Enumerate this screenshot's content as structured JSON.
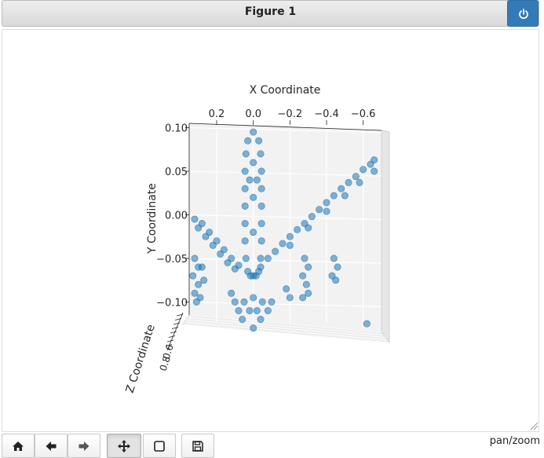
{
  "window": {
    "title": "Figure 1"
  },
  "toolbar": {
    "buttons": [
      {
        "name": "home",
        "icon": "home-icon"
      },
      {
        "name": "back",
        "icon": "arrow-left-icon"
      },
      {
        "name": "forward",
        "icon": "arrow-right-icon"
      },
      {
        "name": "pan",
        "icon": "move-icon",
        "active": true
      },
      {
        "name": "zoom",
        "icon": "square-icon"
      },
      {
        "name": "save",
        "icon": "floppy-icon"
      }
    ],
    "mode_label": "pan/zoom"
  },
  "colors": {
    "accent": "#337ab7",
    "marker": "#1f77b4"
  },
  "chart_data": {
    "type": "scatter",
    "projection": "3d",
    "title": "",
    "xlabel": "X Coordinate",
    "ylabel": "Y Coordinate",
    "zlabel": "Z Coordinate",
    "x_ticks": [
      "0.2",
      "0.0",
      "−0.2",
      "−0.4",
      "−0.6"
    ],
    "x_tick_values": [
      0.2,
      0.0,
      -0.2,
      -0.4,
      -0.6
    ],
    "y_ticks": [
      "0.10",
      "0.05",
      "0.00",
      "−0.05",
      "−0.10"
    ],
    "y_tick_values": [
      0.1,
      0.05,
      0.0,
      -0.05,
      -0.1
    ],
    "z_ticks": [
      "0.6",
      "0.8"
    ],
    "xlim": [
      0.35,
      -0.7
    ],
    "ylim": [
      -0.115,
      0.105
    ],
    "grid": true,
    "description": "airplane point cloud viewed from the front",
    "series": [
      {
        "part": "fuselage",
        "points": [
          [
            0.0,
            0.095
          ],
          [
            0.03,
            0.085
          ],
          [
            -0.03,
            0.085
          ],
          [
            0.04,
            0.07
          ],
          [
            -0.04,
            0.07
          ],
          [
            0.045,
            0.05
          ],
          [
            -0.045,
            0.05
          ],
          [
            0.045,
            0.03
          ],
          [
            -0.045,
            0.03
          ],
          [
            0.045,
            0.01
          ],
          [
            -0.045,
            0.01
          ],
          [
            0.045,
            -0.01
          ],
          [
            -0.045,
            -0.01
          ],
          [
            0.045,
            -0.03
          ],
          [
            -0.045,
            -0.03
          ],
          [
            0.04,
            -0.05
          ],
          [
            -0.04,
            -0.05
          ],
          [
            0.03,
            -0.065
          ],
          [
            -0.03,
            -0.065
          ],
          [
            0.0,
            -0.07
          ],
          [
            0.015,
            -0.07
          ],
          [
            -0.015,
            -0.07
          ],
          [
            0.0,
            0.06
          ],
          [
            0.0,
            0.02
          ],
          [
            0.0,
            -0.02
          ],
          [
            0.02,
            0.04
          ],
          [
            -0.02,
            0.04
          ]
        ]
      },
      {
        "part": "left-wing",
        "points": [
          [
            0.32,
            -0.005
          ],
          [
            0.28,
            -0.01
          ],
          [
            0.24,
            -0.02
          ],
          [
            0.2,
            -0.03
          ],
          [
            0.16,
            -0.04
          ],
          [
            0.12,
            -0.05
          ],
          [
            0.08,
            -0.058
          ],
          [
            0.3,
            -0.015
          ],
          [
            0.26,
            -0.025
          ],
          [
            0.22,
            -0.035
          ],
          [
            0.18,
            -0.045
          ],
          [
            0.14,
            -0.055
          ],
          [
            0.1,
            -0.062
          ]
        ]
      },
      {
        "part": "right-wing",
        "points": [
          [
            -0.04,
            -0.06
          ],
          [
            -0.08,
            -0.05
          ],
          [
            -0.12,
            -0.042
          ],
          [
            -0.16,
            -0.033
          ],
          [
            -0.2,
            -0.025
          ],
          [
            -0.24,
            -0.017
          ],
          [
            -0.28,
            -0.01
          ],
          [
            -0.32,
            -0.002
          ],
          [
            -0.36,
            0.006
          ],
          [
            -0.4,
            0.014
          ],
          [
            -0.44,
            0.022
          ],
          [
            -0.48,
            0.03
          ],
          [
            -0.52,
            0.037
          ],
          [
            -0.56,
            0.044
          ],
          [
            -0.6,
            0.052
          ],
          [
            -0.64,
            0.058
          ],
          [
            -0.66,
            0.063
          ],
          [
            -0.66,
            0.05
          ],
          [
            -0.2,
            -0.035
          ],
          [
            -0.3,
            -0.015
          ],
          [
            -0.4,
            0.004
          ],
          [
            -0.5,
            0.022
          ],
          [
            -0.58,
            0.037
          ]
        ]
      },
      {
        "part": "left-engine",
        "points": [
          [
            0.32,
            -0.05
          ],
          [
            0.3,
            -0.06
          ],
          [
            0.33,
            -0.07
          ],
          [
            0.3,
            -0.08
          ],
          [
            0.32,
            -0.09
          ],
          [
            0.31,
            -0.1
          ],
          [
            0.29,
            -0.095
          ],
          [
            0.27,
            -0.075
          ],
          [
            0.28,
            -0.06
          ]
        ]
      },
      {
        "part": "right-engines",
        "points": [
          [
            -0.28,
            -0.05
          ],
          [
            -0.3,
            -0.06
          ],
          [
            -0.27,
            -0.07
          ],
          [
            -0.29,
            -0.08
          ],
          [
            -0.3,
            -0.09
          ],
          [
            -0.27,
            -0.095
          ],
          [
            -0.44,
            -0.05
          ],
          [
            -0.46,
            -0.06
          ],
          [
            -0.43,
            -0.07
          ],
          [
            -0.45,
            -0.075
          ]
        ]
      },
      {
        "part": "tail",
        "points": [
          [
            0.12,
            -0.09
          ],
          [
            0.1,
            -0.1
          ],
          [
            0.08,
            -0.11
          ],
          [
            0.05,
            -0.1
          ],
          [
            0.02,
            -0.11
          ],
          [
            0.0,
            -0.095
          ],
          [
            -0.02,
            -0.11
          ],
          [
            -0.05,
            -0.1
          ],
          [
            -0.08,
            -0.11
          ],
          [
            -0.1,
            -0.1
          ],
          [
            0.06,
            -0.12
          ],
          [
            -0.04,
            -0.12
          ],
          [
            0.0,
            -0.13
          ],
          [
            -0.62,
            -0.125
          ],
          [
            -0.18,
            -0.085
          ],
          [
            -0.2,
            -0.095
          ]
        ]
      }
    ]
  }
}
